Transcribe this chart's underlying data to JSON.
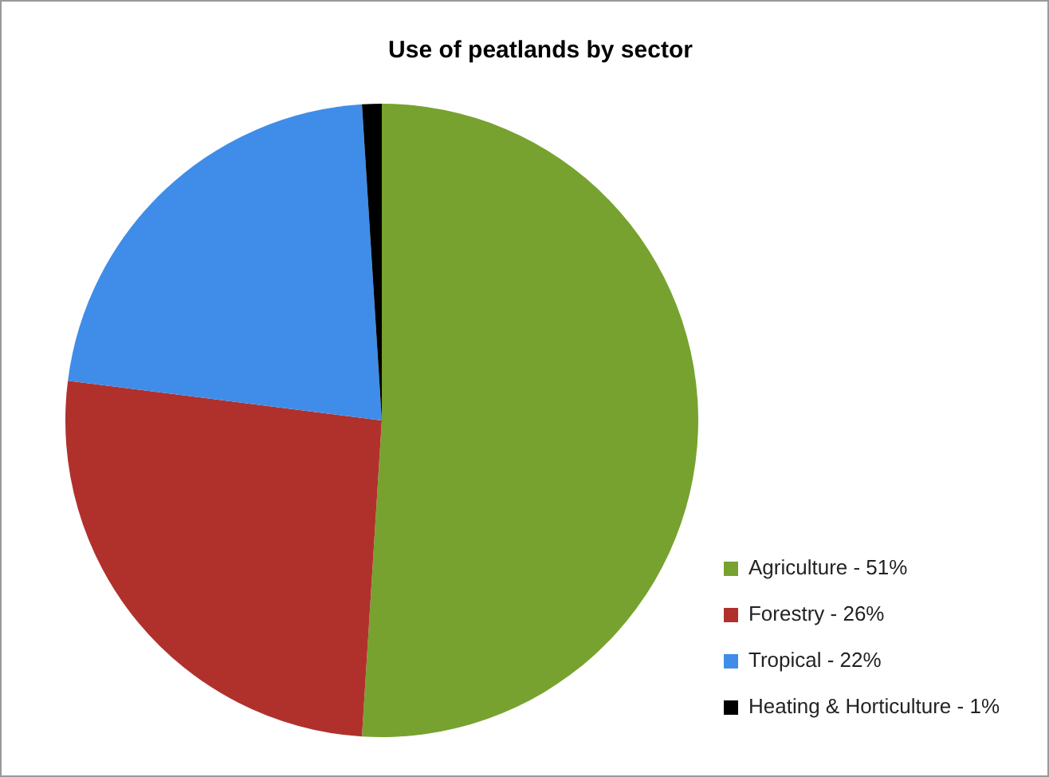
{
  "chart_data": {
    "type": "pie",
    "title": "Use of peatlands by sector",
    "categories": [
      "Agriculture - 51%",
      "Forestry - 26%",
      "Tropical - 22%",
      "Heating & Horticulture - 1%"
    ],
    "values": [
      51,
      26,
      22,
      1
    ],
    "colors": [
      "#77a22f",
      "#b0312c",
      "#3f8de8",
      "#000000"
    ],
    "legend": "bottom right"
  }
}
